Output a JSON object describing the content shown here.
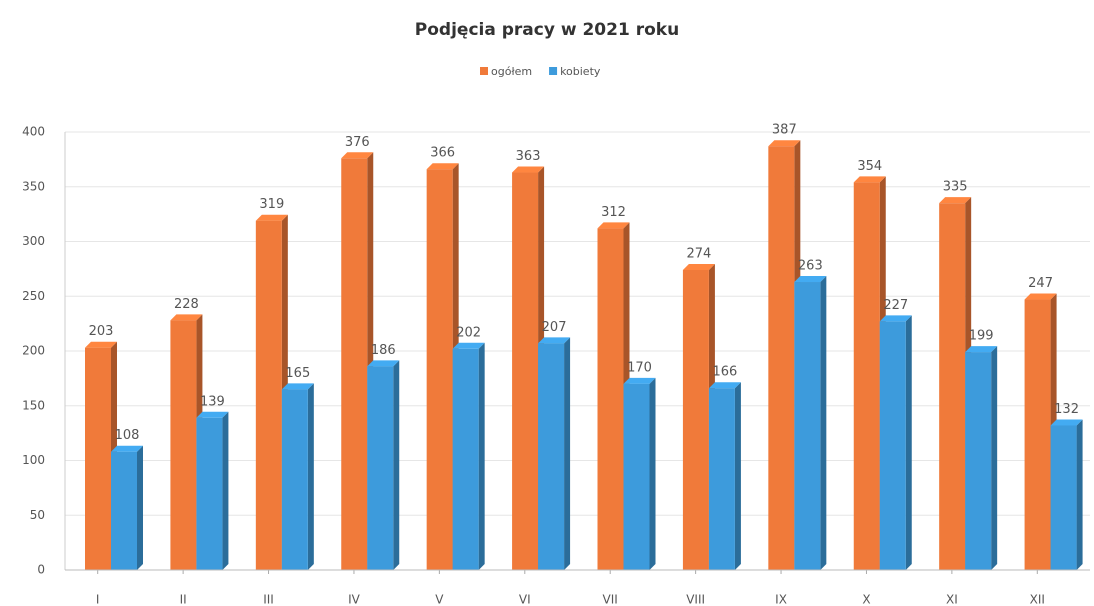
{
  "chart_data": {
    "type": "bar",
    "title": "Podjęcia pracy w 2021 roku",
    "categories": [
      "I",
      "II",
      "III",
      "IV",
      "V",
      "VI",
      "VII",
      "VIII",
      "IX",
      "X",
      "XI",
      "XII"
    ],
    "series": [
      {
        "name": "ogółem",
        "color": "#f07a3a",
        "values": [
          203,
          228,
          319,
          376,
          366,
          363,
          312,
          274,
          387,
          354,
          335,
          247
        ]
      },
      {
        "name": "kobiety",
        "color": "#3d9bdc",
        "values": [
          108,
          139,
          165,
          186,
          202,
          207,
          170,
          166,
          263,
          227,
          199,
          132
        ]
      }
    ],
    "ylim": [
      0,
      400
    ],
    "yticks": [
      0,
      50,
      100,
      150,
      200,
      250,
      300,
      350,
      400
    ],
    "grid": true,
    "legend": "top"
  }
}
